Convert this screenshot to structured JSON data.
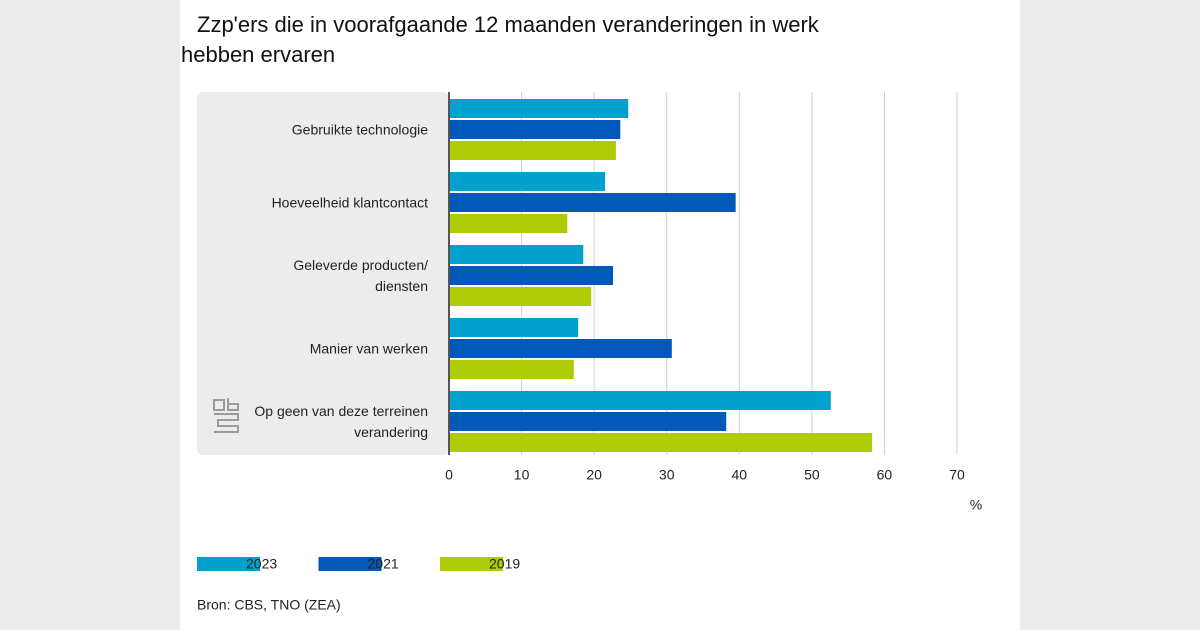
{
  "chart_data": {
    "type": "hbar",
    "title": "Zzp'ers die in voorafgaande 12 maanden veranderingen in werk hebben ervaren",
    "categories": [
      "Gebruikte technologie",
      "Hoeveelheid klantcontact",
      "Geleverde producten/ diensten",
      "Manier van werken",
      "Op geen van deze terreinen verandering"
    ],
    "series": [
      {
        "name": "2023",
        "color": "#00a1cd",
        "values": [
          24.7,
          21.5,
          18.5,
          17.8,
          52.6
        ]
      },
      {
        "name": "2021",
        "color": "#0058b8",
        "values": [
          23.6,
          39.5,
          22.6,
          30.7,
          38.2
        ]
      },
      {
        "name": "2019",
        "color": "#afcb05",
        "values": [
          23.0,
          16.3,
          19.6,
          17.2,
          58.3
        ]
      }
    ],
    "xlim": [
      0,
      70
    ],
    "xticks": [
      0,
      10,
      20,
      30,
      40,
      50,
      60,
      70
    ],
    "xlabel": "%",
    "grid": true,
    "source": "Bron: CBS, TNO (ZEA)"
  }
}
